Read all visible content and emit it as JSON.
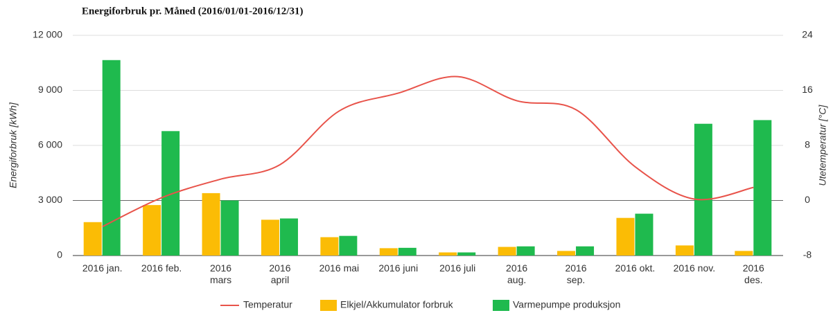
{
  "chart_data": {
    "type": "bar",
    "title": "Energiforbruk pr. Måned (2016/01/01-2016/12/31)",
    "y_label": "Energiforbruk [kWh]",
    "y2_label": "Utetemperatur [°C]",
    "categories": [
      "2016 jan.",
      "2016 feb.",
      "2016\nmars",
      "2016\napril",
      "2016 mai",
      "2016 juni",
      "2016 juli",
      "2016\naug.",
      "2016\nsep.",
      "2016 okt.",
      "2016 nov.",
      "2016\ndes."
    ],
    "series": [
      {
        "name": "Temperatur",
        "type": "line",
        "axis": "y2",
        "color": "#e8534a",
        "values": [
          -3.8,
          0.4,
          3.1,
          5.2,
          13.0,
          15.6,
          18.0,
          14.5,
          13.2,
          4.9,
          0.2,
          1.9
        ]
      },
      {
        "name": "Elkjel/Akkumulator forbruk",
        "type": "bar",
        "color": "#fbbc05",
        "values": [
          1820,
          2750,
          3400,
          1950,
          1000,
          400,
          170,
          470,
          250,
          2050,
          550,
          250
        ]
      },
      {
        "name": "Varmepumpe produksjon",
        "type": "bar",
        "color": "#1fba4e",
        "values": [
          10650,
          6780,
          3000,
          2020,
          1070,
          420,
          170,
          500,
          500,
          2280,
          7180,
          7380
        ]
      }
    ],
    "ylim": [
      0,
      12000
    ],
    "yticks": [
      0,
      {
        "value": 3000,
        "label": "3 000"
      },
      {
        "value": 6000,
        "label": "6 000"
      },
      {
        "value": 9000,
        "label": "9 000"
      },
      {
        "value": 12000,
        "label": "12 000"
      }
    ],
    "y2lim": [
      -8,
      24
    ],
    "y2ticks": [
      -8,
      0,
      8,
      16,
      24
    ],
    "grid": true,
    "legend": "bottom"
  }
}
